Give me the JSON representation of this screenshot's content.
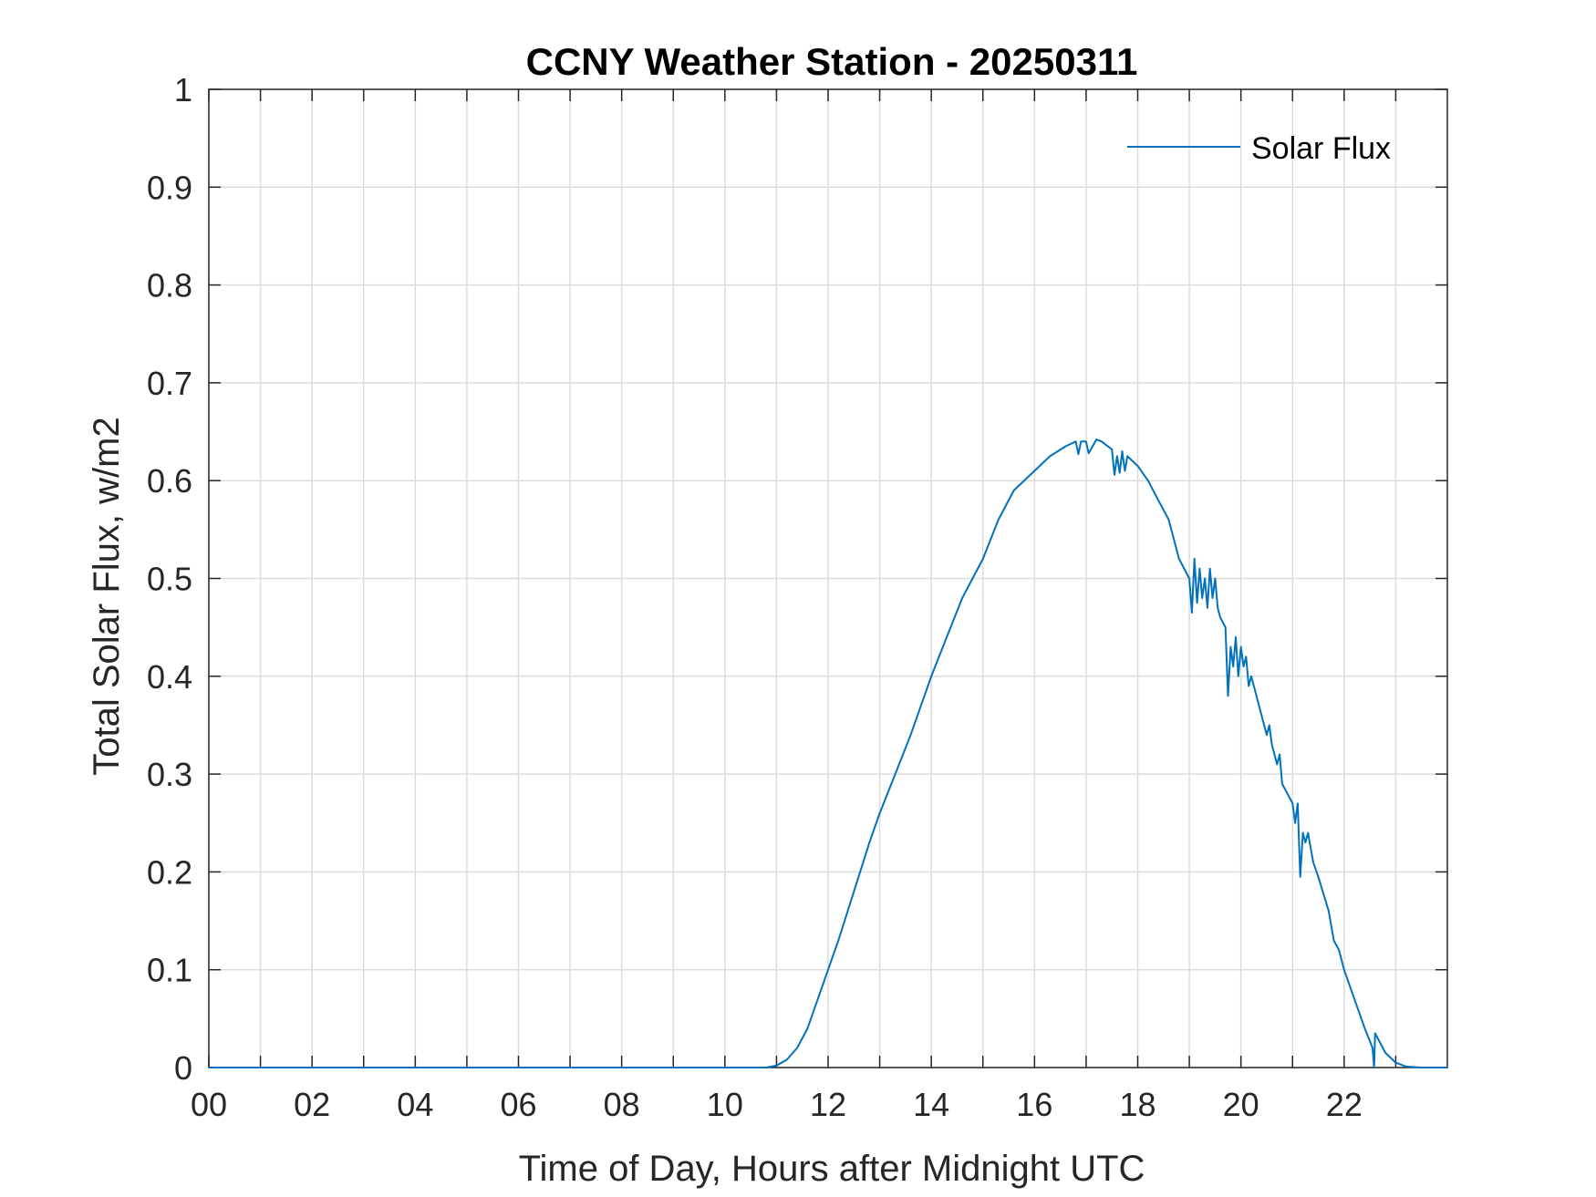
{
  "chart_data": {
    "type": "line",
    "title": "CCNY Weather Station - 20250311",
    "xlabel": "Time of Day, Hours after Midnight UTC",
    "ylabel": "Total Solar Flux, w/m2",
    "xlim": [
      0,
      24
    ],
    "ylim": [
      0,
      1
    ],
    "grid": true,
    "legend_position": "top-right",
    "x_ticks": [
      0,
      2,
      4,
      6,
      8,
      10,
      12,
      14,
      16,
      18,
      20,
      22
    ],
    "x_tick_labels": [
      "00",
      "02",
      "04",
      "06",
      "08",
      "10",
      "12",
      "14",
      "16",
      "18",
      "20",
      "22"
    ],
    "x_minor_grid": [
      1,
      3,
      5,
      7,
      9,
      11,
      13,
      15,
      17,
      19,
      21,
      23
    ],
    "y_ticks": [
      0,
      0.1,
      0.2,
      0.3,
      0.4,
      0.5,
      0.6,
      0.7,
      0.8,
      0.9,
      1
    ],
    "y_tick_labels": [
      "0",
      "0.1",
      "0.2",
      "0.3",
      "0.4",
      "0.5",
      "0.6",
      "0.7",
      "0.8",
      "0.9",
      "1"
    ],
    "series": [
      {
        "name": "Solar Flux",
        "color": "#0072BD",
        "x": [
          0,
          10.8,
          11.0,
          11.2,
          11.4,
          11.6,
          11.8,
          12.0,
          12.2,
          12.5,
          12.8,
          13.0,
          13.3,
          13.6,
          14.0,
          14.3,
          14.6,
          15.0,
          15.3,
          15.6,
          16.0,
          16.3,
          16.6,
          16.8,
          16.85,
          16.9,
          17.0,
          17.05,
          17.2,
          17.3,
          17.5,
          17.55,
          17.6,
          17.65,
          17.7,
          17.75,
          17.8,
          18.0,
          18.2,
          18.4,
          18.6,
          18.8,
          19.0,
          19.05,
          19.1,
          19.15,
          19.2,
          19.25,
          19.3,
          19.35,
          19.4,
          19.45,
          19.5,
          19.55,
          19.6,
          19.7,
          19.75,
          19.8,
          19.85,
          19.9,
          19.95,
          20.0,
          20.05,
          20.1,
          20.15,
          20.2,
          20.4,
          20.5,
          20.55,
          20.6,
          20.7,
          20.75,
          20.8,
          21.0,
          21.05,
          21.1,
          21.15,
          21.2,
          21.25,
          21.3,
          21.4,
          21.5,
          21.7,
          21.8,
          21.85,
          21.9,
          22.0,
          22.2,
          22.4,
          22.55,
          22.58,
          22.6,
          22.65,
          22.8,
          23.0,
          23.2,
          23.5,
          24.0
        ],
        "y": [
          0,
          0,
          0.002,
          0.008,
          0.02,
          0.04,
          0.07,
          0.1,
          0.13,
          0.18,
          0.23,
          0.26,
          0.3,
          0.34,
          0.4,
          0.44,
          0.48,
          0.52,
          0.56,
          0.59,
          0.61,
          0.625,
          0.635,
          0.64,
          0.627,
          0.64,
          0.64,
          0.628,
          0.642,
          0.64,
          0.632,
          0.606,
          0.625,
          0.608,
          0.63,
          0.61,
          0.625,
          0.615,
          0.6,
          0.58,
          0.56,
          0.52,
          0.5,
          0.465,
          0.52,
          0.475,
          0.51,
          0.48,
          0.5,
          0.47,
          0.51,
          0.48,
          0.5,
          0.47,
          0.46,
          0.45,
          0.38,
          0.43,
          0.41,
          0.44,
          0.4,
          0.43,
          0.41,
          0.42,
          0.39,
          0.4,
          0.36,
          0.34,
          0.35,
          0.33,
          0.31,
          0.32,
          0.29,
          0.27,
          0.25,
          0.27,
          0.195,
          0.24,
          0.23,
          0.24,
          0.21,
          0.195,
          0.16,
          0.13,
          0.125,
          0.12,
          0.1,
          0.07,
          0.04,
          0.02,
          0.0,
          0.035,
          0.03,
          0.015,
          0.005,
          0.001,
          0,
          0
        ]
      }
    ]
  }
}
